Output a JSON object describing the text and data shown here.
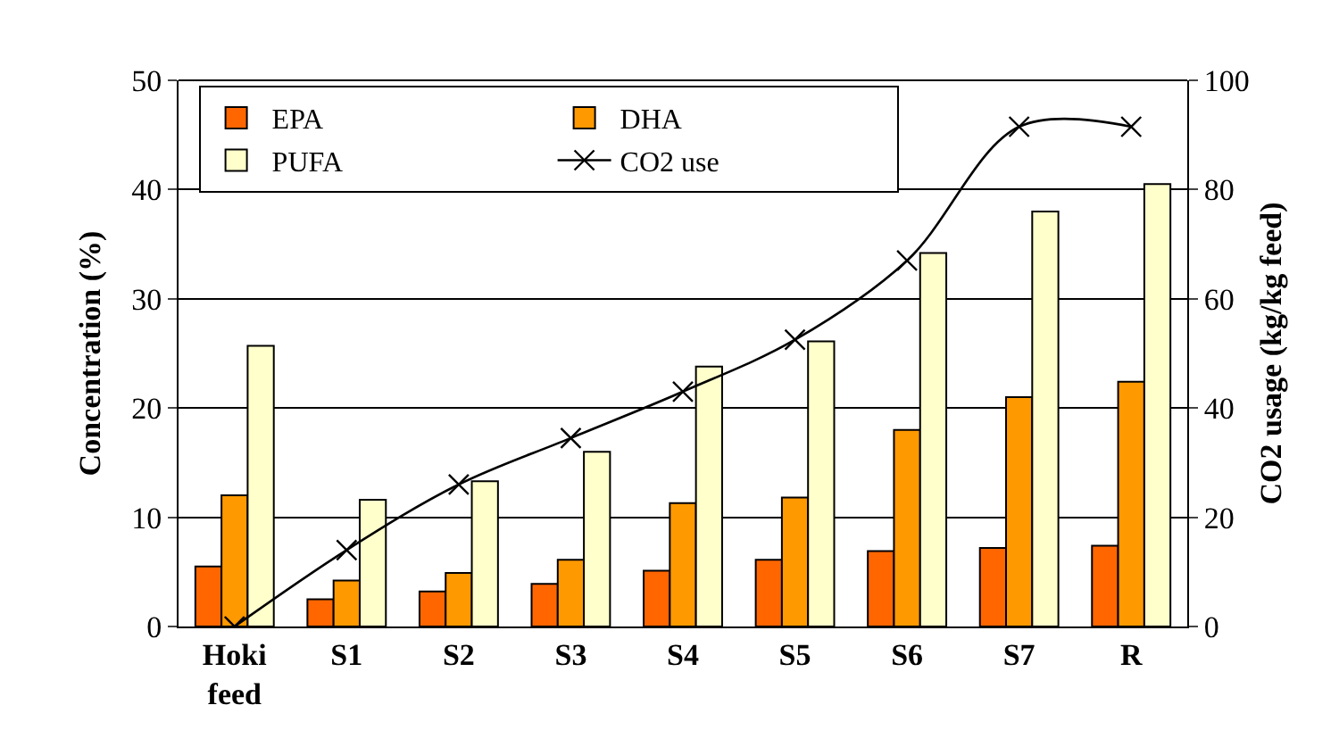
{
  "chart_data": {
    "type": "bar",
    "ylabel": "Concentration (%)",
    "y2label": "CO2 usage (kg/kg feed)",
    "categories": [
      "Hoki feed",
      "S1",
      "S2",
      "S3",
      "S4",
      "S5",
      "S6",
      "S7",
      "R"
    ],
    "series": [
      {
        "name": "EPA",
        "color": "#ff6600",
        "values": [
          5.5,
          2.5,
          3.2,
          3.9,
          5.1,
          6.1,
          6.9,
          7.2,
          7.4
        ]
      },
      {
        "name": "DHA",
        "color": "#ff9900",
        "values": [
          12,
          4.2,
          4.9,
          6.1,
          11.3,
          11.8,
          18,
          21,
          22.4
        ]
      },
      {
        "name": "PUFA",
        "color": "#ffffcc",
        "values": [
          25.7,
          11.6,
          13.3,
          16,
          23.8,
          26.1,
          34.2,
          38,
          40.5
        ]
      },
      {
        "name": "CO2 use",
        "type": "line",
        "axis": "y2",
        "color": "#000000",
        "marker": "cross",
        "line_style": "solid",
        "values": [
          0,
          14,
          26,
          34.5,
          43,
          52.5,
          67,
          91.5,
          91.5
        ]
      }
    ],
    "ylim": [
      0,
      50
    ],
    "yticks": [
      0,
      10,
      20,
      30,
      40,
      50
    ],
    "y2lim": [
      0,
      100
    ],
    "y2ticks": [
      0,
      20,
      40,
      60,
      80,
      100
    ],
    "grid": "y",
    "legend": "top left"
  }
}
